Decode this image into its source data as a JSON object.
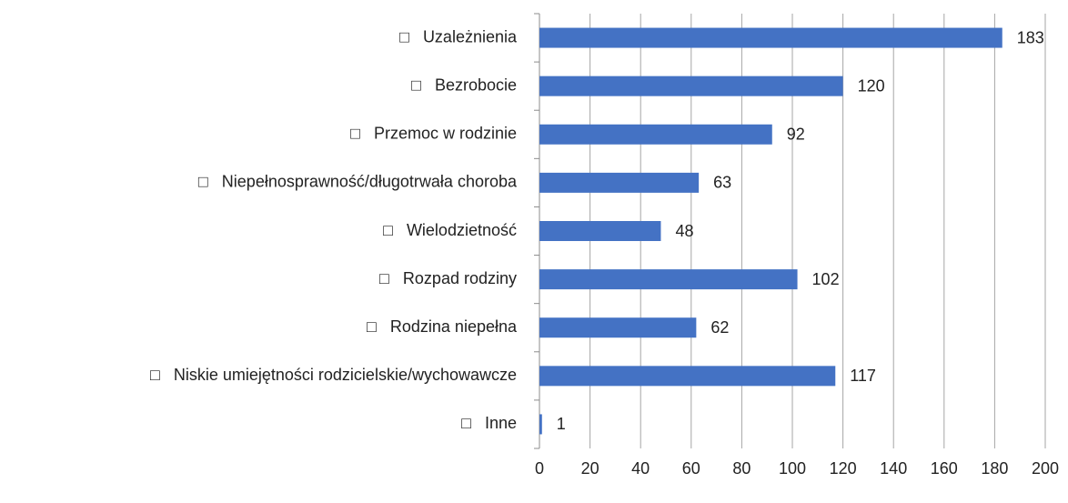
{
  "chart_data": {
    "type": "bar",
    "orientation": "horizontal",
    "categories": [
      "□   Uzależnienia",
      "□   Bezrobocie",
      "□   Przemoc w rodzinie",
      "□   Niepełnosprawność/długotrwała choroba",
      "□   Wielodzietność",
      "□   Rozpad rodziny",
      "□   Rodzina niepełna",
      "□   Niskie umiejętności rodzicielskie/wychowawcze",
      "□   Inne"
    ],
    "values": [
      183,
      120,
      92,
      63,
      48,
      102,
      62,
      117,
      1
    ],
    "color": "#4472c4",
    "xlim": [
      0,
      200
    ],
    "xticks": [
      0,
      20,
      40,
      60,
      80,
      100,
      120,
      140,
      160,
      180,
      200
    ],
    "grid": true
  }
}
